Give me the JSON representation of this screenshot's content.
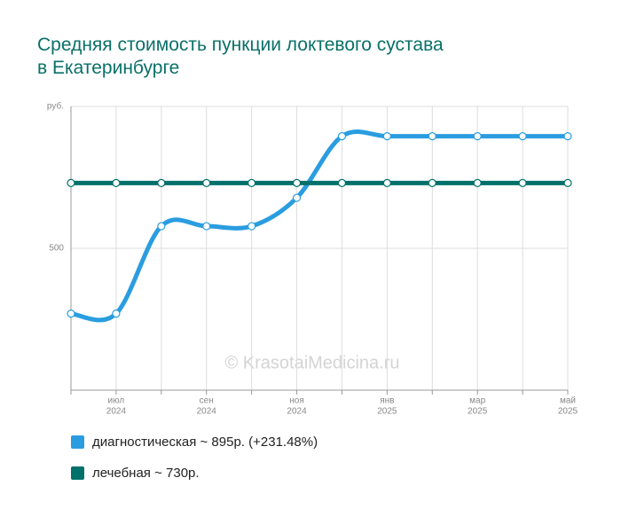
{
  "chart_data": {
    "type": "line",
    "title": "Средняя стоимость пункции локтевого сустава в Екатеринбурге",
    "watermark": "© KrasotaiMedicina.ru",
    "categories": [
      null,
      [
        "июл",
        "2024"
      ],
      null,
      [
        "сен",
        "2024"
      ],
      null,
      [
        "ноя",
        "2024"
      ],
      null,
      [
        "янв",
        "2025"
      ],
      null,
      [
        "мар",
        "2025"
      ],
      null,
      [
        "май",
        "2025"
      ]
    ],
    "series": [
      {
        "name": "диагностическая ~ 895р. (+231.48%)",
        "color": "#2a9de0",
        "values": [
          270,
          270,
          578,
          578,
          578,
          678,
          895,
          895,
          895,
          895,
          895,
          895
        ]
      },
      {
        "name": "лечебная ~ 730р.",
        "color": "#00706a",
        "values": [
          730,
          730,
          730,
          730,
          730,
          730,
          730,
          730,
          730,
          730,
          730,
          730
        ]
      }
    ],
    "ylim": [
      0,
      1000
    ],
    "yticks": [
      500,
      {
        "value": 1000,
        "label": "руб."
      }
    ],
    "grid": true
  }
}
